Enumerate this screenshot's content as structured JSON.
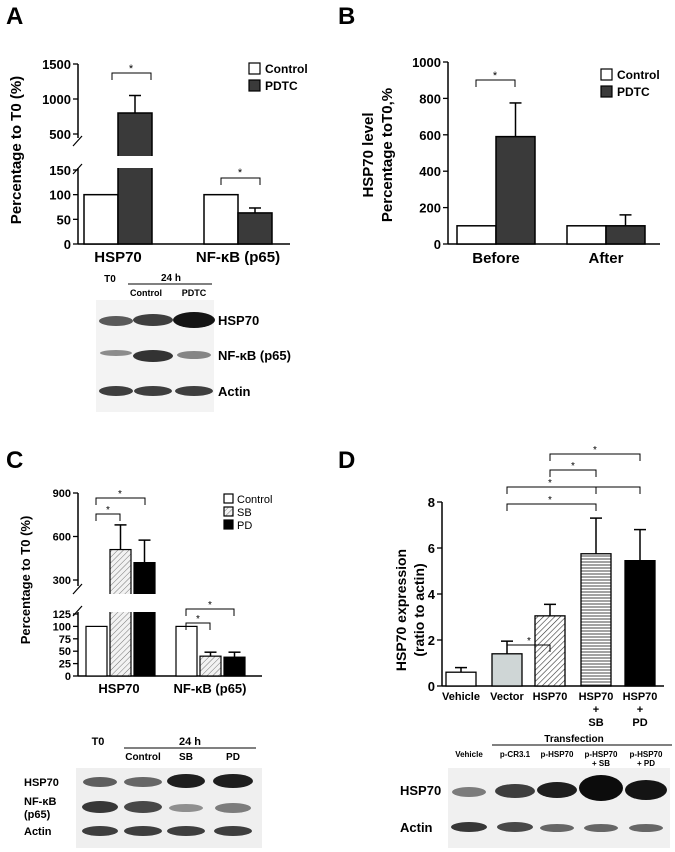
{
  "colors": {
    "control": "#ffffff",
    "pdtc": "#3a3a3a",
    "sb": "#e6e6e6",
    "pd": "#000000",
    "vector": "#cfd6d6",
    "stroke": "#000000"
  },
  "panels": {
    "A": {
      "letter": "A",
      "ylabel": "Percentage to T0 (%)",
      "yticks_upper": [
        "500",
        "1000",
        "1500"
      ],
      "yticks_lower": [
        "0",
        "50",
        "100",
        "150"
      ],
      "legend": [
        "Control",
        "PDTC"
      ],
      "sig": [
        "*",
        "*"
      ],
      "blot": {
        "t0": "T0",
        "group": "24 h",
        "lanes": [
          "Control",
          "PDTC"
        ],
        "bands": [
          "HSP70",
          "NF-κB (p65)",
          "Actin"
        ]
      }
    },
    "B": {
      "letter": "B",
      "ylabel_line1": "HSP70 level",
      "ylabel_line2": "Percentage toT0,%",
      "yticks": [
        "0",
        "200",
        "400",
        "600",
        "800",
        "1000"
      ],
      "legend": [
        "Control",
        "PDTC"
      ],
      "sig": [
        "*"
      ]
    },
    "C": {
      "letter": "C",
      "ylabel": "Percentage to T0 (%)",
      "yticks_upper": [
        "300",
        "600",
        "900"
      ],
      "yticks_lower": [
        "0",
        "25",
        "50",
        "75",
        "100",
        "125"
      ],
      "legend": [
        "Control",
        "SB",
        "PD"
      ],
      "sig": [
        "*",
        "*",
        "*",
        "*"
      ],
      "blot": {
        "t0": "T0",
        "group": "24 h",
        "lanes": [
          "Control",
          "SB",
          "PD"
        ],
        "bands": [
          "HSP70",
          "NF-κB",
          "(p65)",
          "Actin"
        ]
      }
    },
    "D": {
      "letter": "D",
      "ylabel_line1": "HSP70 expression",
      "ylabel_line2": "(ratio to actin)",
      "yticks": [
        "0",
        "2",
        "4",
        "6",
        "8"
      ],
      "xlabels": [
        [
          "Vehicle"
        ],
        [
          "Vector"
        ],
        [
          "HSP70"
        ],
        [
          "HSP70",
          "+",
          "SB"
        ],
        [
          "HSP70",
          "+",
          "PD"
        ]
      ],
      "sig": [
        "*",
        "*",
        "*",
        "*",
        "*",
        "*"
      ],
      "blot": {
        "group": "Transfection",
        "lanes": [
          [
            "Vehicle"
          ],
          [
            "p-CR3.1"
          ],
          [
            "p-HSP70"
          ],
          [
            "p-HSP70",
            "+ SB"
          ],
          [
            "p-HSP70",
            "+ PD"
          ]
        ],
        "bands": [
          "HSP70",
          "Actin"
        ]
      }
    }
  },
  "chart_data": [
    {
      "panel": "A",
      "type": "bar",
      "categories": [
        "HSP70",
        "NF-κB (p65)"
      ],
      "series": [
        {
          "name": "Control",
          "values": [
            100,
            100
          ],
          "errors": [
            0,
            0
          ]
        },
        {
          "name": "PDTC",
          "values": [
            800,
            63
          ],
          "errors": [
            250,
            10
          ]
        }
      ],
      "ylabel": "Percentage to T0 (%)",
      "ylim": [
        0,
        1500
      ],
      "axis_break": [
        150,
        500
      ],
      "legend": "top-right"
    },
    {
      "panel": "B",
      "type": "bar",
      "categories": [
        "Before",
        "After"
      ],
      "series": [
        {
          "name": "Control",
          "values": [
            100,
            100
          ],
          "errors": [
            0,
            0
          ]
        },
        {
          "name": "PDTC",
          "values": [
            590,
            100
          ],
          "errors": [
            185,
            60
          ]
        }
      ],
      "ylabel": "HSP70 level Percentage toT0,%",
      "ylim": [
        0,
        1000
      ],
      "legend": "top-right"
    },
    {
      "panel": "C",
      "type": "bar",
      "categories": [
        "HSP70",
        "NF-κB (p65)"
      ],
      "series": [
        {
          "name": "Control",
          "values": [
            100,
            100
          ],
          "errors": [
            0,
            0
          ]
        },
        {
          "name": "SB",
          "values": [
            510,
            40
          ],
          "errors": [
            170,
            8
          ]
        },
        {
          "name": "PD",
          "values": [
            420,
            38
          ],
          "errors": [
            155,
            10
          ]
        }
      ],
      "ylabel": "Percentage to T0 (%)",
      "ylim": [
        0,
        900
      ],
      "axis_break": [
        125,
        300
      ],
      "legend": "top-right"
    },
    {
      "panel": "D",
      "type": "bar",
      "categories": [
        "Vehicle",
        "Vector",
        "HSP70",
        "HSP70 + SB",
        "HSP70 + PD"
      ],
      "values": [
        0.6,
        1.4,
        3.05,
        5.75,
        5.45
      ],
      "errors": [
        0.2,
        0.55,
        0.5,
        1.55,
        1.35
      ],
      "ylabel": "HSP70 expression (ratio to actin)",
      "ylim": [
        0,
        8
      ]
    }
  ]
}
